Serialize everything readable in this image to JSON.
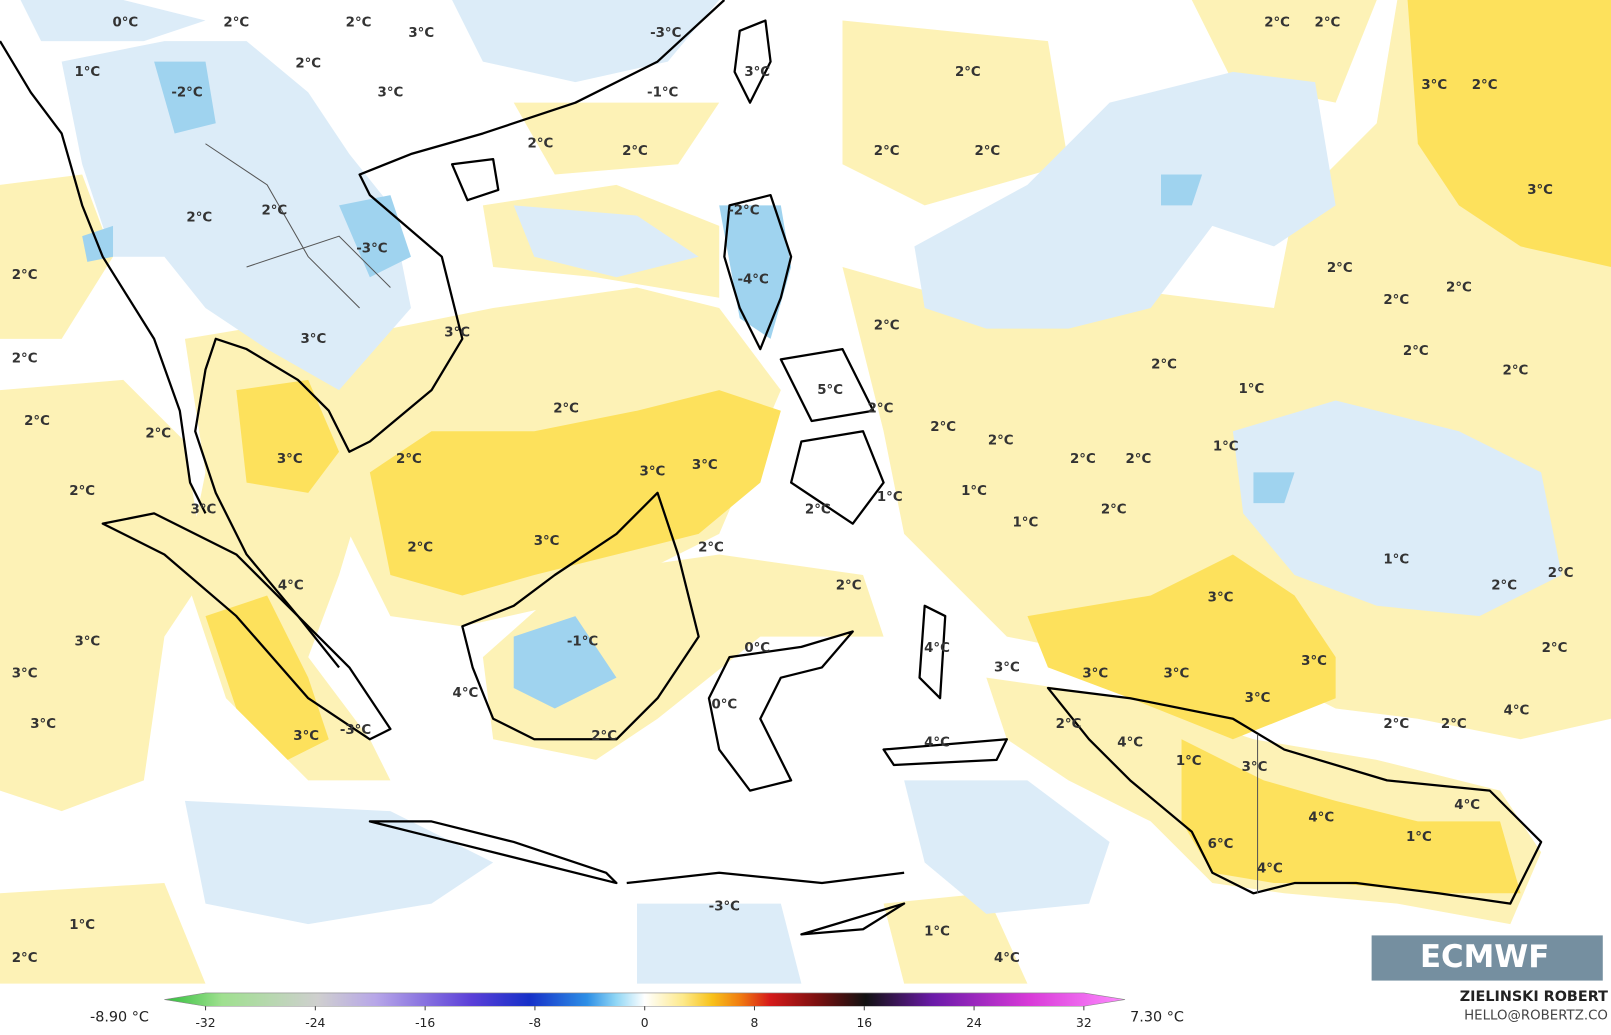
{
  "map": {
    "contour_labels": [
      "0°C",
      "2°C",
      "2°C",
      "3°C",
      "2°C",
      "1°C",
      "-2°C",
      "3°C",
      "-3°C",
      "-1°C",
      "3°C",
      "2°C",
      "2°C",
      "2°C",
      "2°C",
      "2°C",
      "2°C",
      "2°C",
      "3°C",
      "2°C",
      "3°C",
      "2°C",
      "2°C",
      "-3°C",
      "-2°C",
      "-4°C",
      "2°C",
      "2°C",
      "3°C",
      "3°C",
      "2°C",
      "2°C",
      "2°C",
      "2°C",
      "2°C",
      "2°C",
      "2°C",
      "1°C",
      "1°C",
      "2°C",
      "2°C",
      "3°C",
      "2°C",
      "2°C",
      "5°C",
      "2°C",
      "2°C",
      "2°C",
      "2°C",
      "2°C",
      "1°C",
      "1°C",
      "2°C",
      "3°C",
      "3°C",
      "2°C",
      "3°C",
      "2°C",
      "1°C",
      "3°C",
      "2°C",
      "2°C",
      "4°C",
      "2°C",
      "3°C",
      "1°C",
      "2°C",
      "2°C",
      "3°C",
      "3°C",
      "3°C",
      "-1°C",
      "0°C",
      "4°C",
      "3°C",
      "3°C",
      "3°C",
      "3°C",
      "2°C",
      "4°C",
      "0°C",
      "3°C",
      "2°C",
      "2°C",
      "4°C",
      "3°C",
      "-3°C",
      "2°C",
      "2°C",
      "4°C",
      "4°C",
      "1°C",
      "3°C",
      "4°C",
      "4°C",
      "1°C",
      "6°C",
      "4°C",
      "-3°C",
      "1°C",
      "2°C",
      "1°C",
      "4°C"
    ]
  },
  "colorbar": {
    "min_label": "-8.90 °C",
    "max_label": "7.30 °C",
    "lim": [
      -35,
      35
    ],
    "ticks": [
      -32,
      -24,
      -16,
      -8,
      0,
      8,
      16,
      24,
      32
    ]
  },
  "credits": {
    "author": "ZIELINSKI ROBERT",
    "email": "HELLO@ROBERTZ.CO"
  },
  "logo": "ECMWF"
}
